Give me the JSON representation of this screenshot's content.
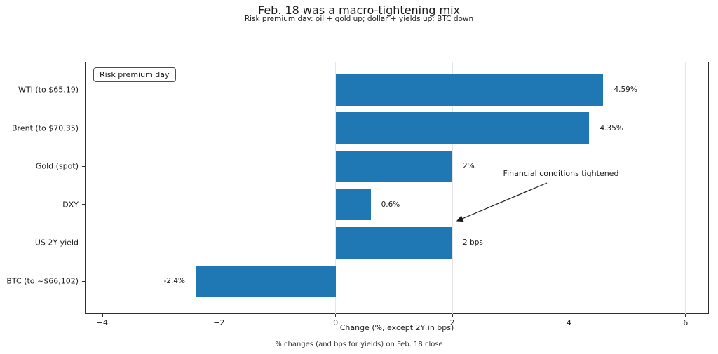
{
  "figure": {
    "title": "Feb. 18 was a macro-tightening mix",
    "subtitle": "Risk premium day: oil + gold up; dollar + yields up; BTC down",
    "footer": "% changes (and bps for yields) on Feb. 18 close"
  },
  "legend": {
    "label": "Risk premium day"
  },
  "annotation": {
    "text": "Financial conditions tightened"
  },
  "chart_data": {
    "type": "bar",
    "orientation": "horizontal",
    "title": "Feb. 18 was a macro-tightening mix",
    "subtitle": "Risk premium day: oil + gold up; dollar + yields up; BTC down",
    "categories": [
      "WTI (to $65.19)",
      "Brent (to $70.35)",
      "Gold (spot)",
      "DXY",
      "US 2Y yield",
      "BTC (to ~$66,102)"
    ],
    "values": [
      4.59,
      4.35,
      2,
      0.6,
      2,
      -2.4
    ],
    "value_labels": [
      "4.59%",
      "4.35%",
      "2%",
      "0.6%",
      "2 bps",
      "-2.4%"
    ],
    "xlabel": "Change (%, except 2Y in bps)",
    "ylabel": "",
    "xticks": [
      -4,
      -2,
      0,
      2,
      4,
      6
    ],
    "xtick_labels": [
      "−4",
      "−2",
      "0",
      "2",
      "4",
      "6"
    ],
    "xlim": [
      -4.3,
      6.4
    ],
    "grid": true,
    "legend_position": "upper left",
    "bar_color": "#1f77b4",
    "annotation": {
      "text": "Financial conditions tightened",
      "points_at": "US 2Y yield"
    }
  }
}
